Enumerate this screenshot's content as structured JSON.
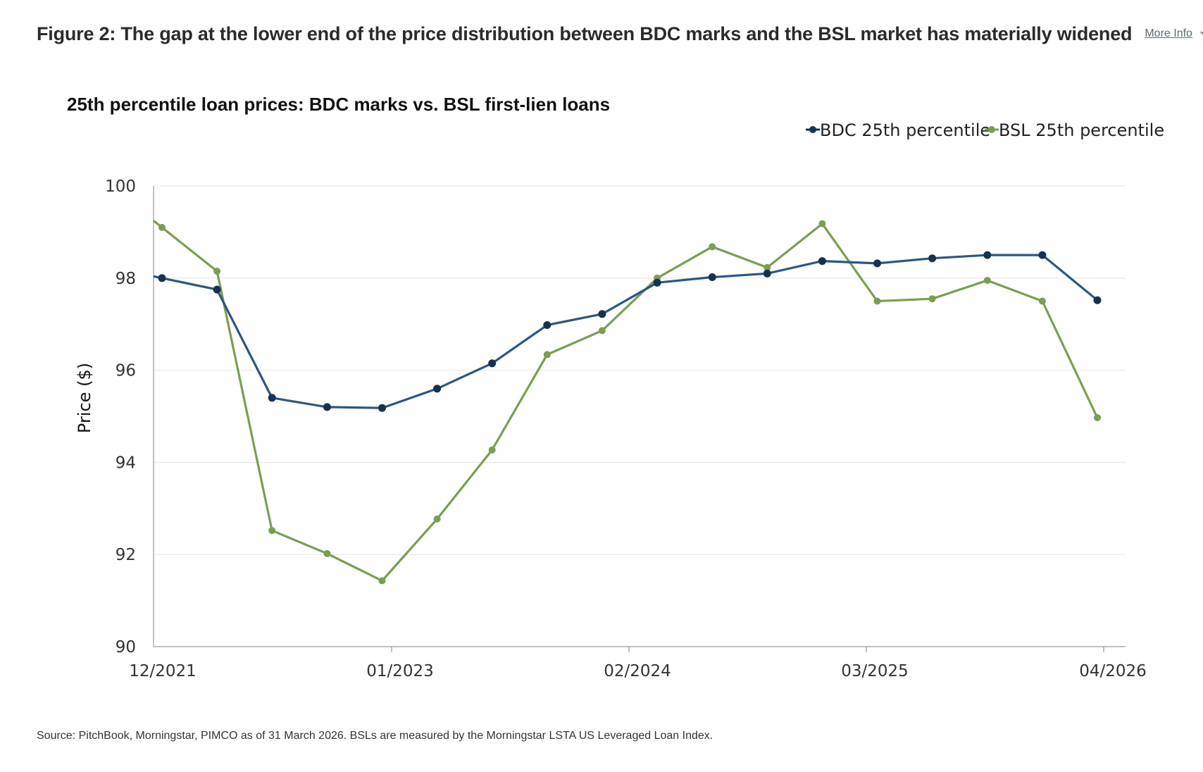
{
  "figure": {
    "title": "Figure 2: The gap at the lower end of the price distribution between BDC marks and the BSL market has materially widened",
    "more_info_label": "More Info",
    "source": "Source: PitchBook, Morningstar, PIMCO as of 31 March 2026. BSLs are measured by the Morningstar LSTA US Leveraged Loan Index."
  },
  "chart_data": {
    "type": "line",
    "title": "25th percentile loan prices: BDC marks vs. BSL first-lien loans",
    "ylabel": "Price ($)",
    "xlabel": "",
    "ylim": [
      90,
      100
    ],
    "yticks": [
      90,
      92,
      94,
      96,
      98,
      100
    ],
    "xtick_labels": [
      "12/2021",
      "01/2023",
      "02/2024",
      "03/2025",
      "04/2026"
    ],
    "x": [
      "12/2021",
      "03/2022",
      "06/2022",
      "09/2022",
      "12/2022",
      "03/2023",
      "06/2023",
      "09/2023",
      "12/2023",
      "03/2024",
      "06/2024",
      "09/2024",
      "12/2024",
      "03/2025",
      "06/2025",
      "09/2025",
      "12/2025",
      "03/2026"
    ],
    "grid": true,
    "legend_position": "top-right",
    "series": [
      {
        "name": "BDC 25th percentile",
        "color": "#2a5784",
        "marker_color": "#15324f",
        "values": [
          98.0,
          97.75,
          95.4,
          95.2,
          95.18,
          95.6,
          96.15,
          96.98,
          97.22,
          97.9,
          98.02,
          98.1,
          98.37,
          98.32,
          98.43,
          98.5,
          98.5,
          97.52
        ]
      },
      {
        "name": "BSL 25th percentile",
        "color": "#7a9e53",
        "marker_color": "#7a9e53",
        "values": [
          99.1,
          98.15,
          92.52,
          92.02,
          91.43,
          92.77,
          94.27,
          96.34,
          96.86,
          98.0,
          98.68,
          98.23,
          99.18,
          97.5,
          97.55,
          97.95,
          97.5,
          94.97
        ]
      }
    ]
  }
}
